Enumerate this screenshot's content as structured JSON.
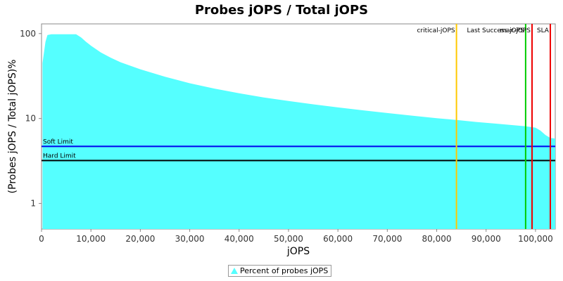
{
  "chart_data": {
    "type": "area",
    "title": "Probes jOPS / Total jOPS",
    "xlabel": "jOPS",
    "ylabel": "(Probes jOPS / Total jOPS)%",
    "xlim": [
      0,
      104000
    ],
    "ylim": [
      0.5,
      130
    ],
    "y_scale": "log",
    "x_ticks": [
      0,
      10000,
      20000,
      30000,
      40000,
      50000,
      60000,
      70000,
      80000,
      90000,
      100000
    ],
    "x_tick_labels": [
      "0",
      "10,000",
      "20,000",
      "30,000",
      "40,000",
      "50,000",
      "60,000",
      "70,000",
      "80,000",
      "90,000",
      "100,000"
    ],
    "y_ticks": [
      1,
      10,
      100
    ],
    "y_tick_labels": [
      "1",
      "10",
      "100"
    ],
    "series": [
      {
        "name": "Percent of probes jOPS",
        "color": "#55ffff",
        "x": [
          200,
          800,
          1200,
          2000,
          3000,
          5000,
          7000,
          8000,
          9000,
          10000,
          12000,
          14000,
          16000,
          20000,
          25000,
          30000,
          35000,
          40000,
          45000,
          50000,
          55000,
          60000,
          65000,
          70000,
          75000,
          80000,
          84000,
          88000,
          92000,
          96000,
          98000,
          100000,
          101000,
          102000,
          103000,
          104000
        ],
        "values": [
          45,
          80,
          96,
          98,
          98,
          98,
          98,
          90,
          80,
          72,
          60,
          52,
          46,
          38,
          31,
          26,
          22.5,
          19.8,
          17.7,
          16.1,
          14.7,
          13.5,
          12.5,
          11.6,
          10.8,
          10.1,
          9.6,
          9.1,
          8.7,
          8.3,
          8.1,
          7.8,
          7.2,
          6.4,
          5.9,
          5.8
        ]
      }
    ],
    "vertical_lines": [
      {
        "label": "critical-jOPS",
        "x": 84000,
        "color": "#ffc800"
      },
      {
        "label": "Last Success jOPS",
        "x": 98000,
        "color": "#00cc00"
      },
      {
        "label": "max-jOPS",
        "x": 99300,
        "color": "#ee0000"
      },
      {
        "label": "SLA",
        "x": 103000,
        "color": "#ee0000"
      }
    ],
    "horizontal_lines": [
      {
        "label": "Soft Limit",
        "y": 4.7,
        "color": "#0000ee"
      },
      {
        "label": "Hard Limit",
        "y": 3.2,
        "color": "#000000"
      }
    ],
    "legend_position": "bottom",
    "grid": false
  }
}
